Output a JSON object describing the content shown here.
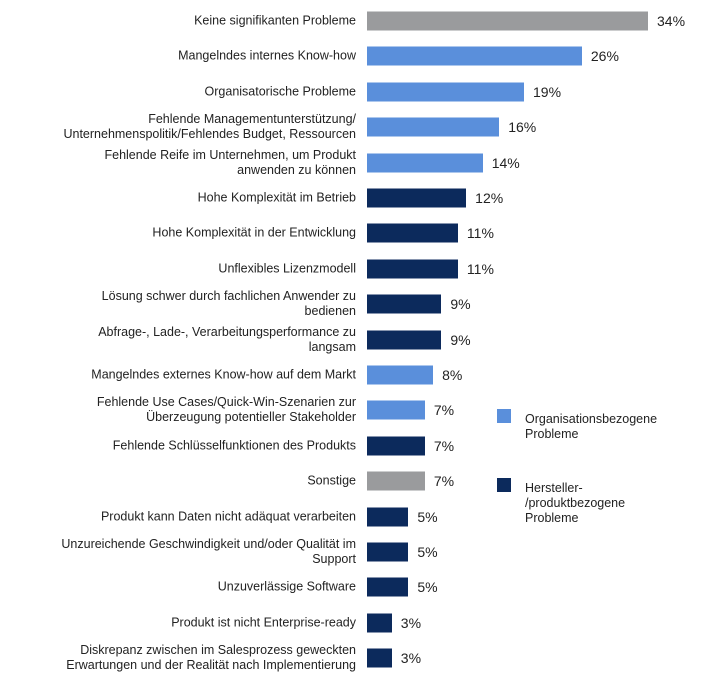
{
  "chart_data": {
    "type": "bar",
    "orientation": "horizontal",
    "categories": [
      "Keine signifikanten Probleme",
      "Mangelndes internes Know-how",
      "Organisatorische Probleme",
      "Fehlende Managementunterstützung/\nUnternehmenspolitik/Fehlendes Budget, Ressourcen",
      "Fehlende Reife im Unternehmen, um Produkt\nanwenden zu können",
      "Hohe Komplexität im Betrieb",
      "Hohe Komplexität in der Entwicklung",
      "Unflexibles Lizenzmodell",
      "Lösung schwer durch fachlichen Anwender zu\nbedienen",
      "Abfrage-, Lade-, Verarbeitungsperformance zu\nlangsam",
      "Mangelndes externes Know-how auf dem Markt",
      "Fehlende Use Cases/Quick-Win-Szenarien zur\nÜberzeugung potentieller Stakeholder",
      "Fehlende Schlüsselfunktionen des Produkts",
      "Sonstige",
      "Produkt kann Daten nicht adäquat verarbeiten",
      "Unzureichende Geschwindigkeit und/oder Qualität im\nSupport",
      "Unzuverlässige Software",
      "Produkt ist nicht Enterprise-ready",
      "Diskrepanz zwischen im Salesprozess geweckten\nErwartungen und der Realität nach Implementierung"
    ],
    "values": [
      34,
      26,
      19,
      16,
      14,
      12,
      11,
      11,
      9,
      9,
      8,
      7,
      7,
      7,
      5,
      5,
      5,
      3,
      3
    ],
    "value_labels": [
      "34%",
      "26%",
      "19%",
      "16%",
      "14%",
      "12%",
      "11%",
      "11%",
      "9%",
      "9%",
      "8%",
      "7%",
      "7%",
      "7%",
      "5%",
      "5%",
      "5%",
      "3%",
      "3%"
    ],
    "groups": [
      "other",
      "org",
      "org",
      "org",
      "org",
      "vendor",
      "vendor",
      "vendor",
      "vendor",
      "vendor",
      "org",
      "org",
      "vendor",
      "other",
      "vendor",
      "vendor",
      "vendor",
      "vendor",
      "vendor"
    ],
    "colors": {
      "other": "#9a9b9d",
      "org": "#5a8fdb",
      "vendor": "#0c2a5c"
    },
    "legend": [
      {
        "group": "org",
        "label": "Organisationsbezogene\nProbleme"
      },
      {
        "group": "vendor",
        "label": "Hersteller-\n/produktbezogene\nProbleme"
      }
    ],
    "legend_placement": "right",
    "xlim": [
      0,
      34
    ],
    "grid": false
  }
}
